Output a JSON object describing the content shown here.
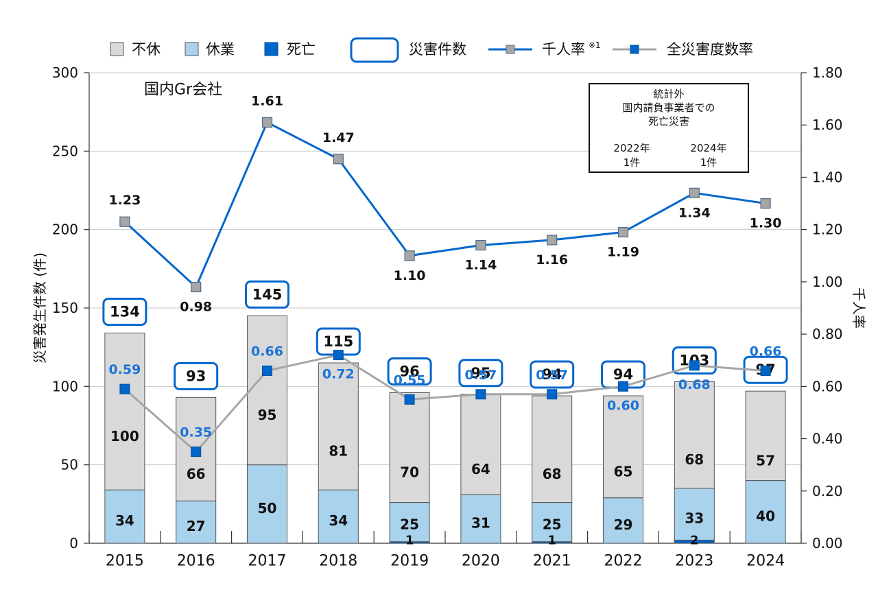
{
  "chart_data": {
    "type": "bar",
    "company_label": "国内Gr会社",
    "categories": [
      "2015",
      "2016",
      "2017",
      "2018",
      "2019",
      "2020",
      "2021",
      "2022",
      "2023",
      "2024"
    ],
    "series": [
      {
        "name": "死亡",
        "kind": "stacked-bar",
        "values": [
          0,
          0,
          0,
          0,
          1,
          0,
          1,
          0,
          2,
          0
        ],
        "labels": [
          "",
          "",
          "",
          "",
          "1",
          "",
          "1",
          "",
          "2",
          ""
        ]
      },
      {
        "name": "休業",
        "kind": "stacked-bar",
        "values": [
          34,
          27,
          50,
          34,
          25,
          31,
          25,
          29,
          33,
          40
        ],
        "labels": [
          "34",
          "27",
          "50",
          "34",
          "25",
          "31",
          "25",
          "29",
          "33",
          "40"
        ]
      },
      {
        "name": "不休",
        "kind": "stacked-bar",
        "values": [
          100,
          66,
          95,
          81,
          70,
          64,
          68,
          65,
          68,
          57
        ],
        "labels": [
          "100",
          "66",
          "95",
          "81",
          "70",
          "64",
          "68",
          "65",
          "68",
          "57"
        ]
      },
      {
        "name": "千人率",
        "kind": "line-right",
        "values": [
          1.23,
          0.98,
          1.61,
          1.47,
          1.1,
          1.14,
          1.16,
          1.19,
          1.34,
          1.3
        ],
        "labels": [
          "1.23",
          "0.98",
          "1.61",
          "1.47",
          "1.10",
          "1.14",
          "1.16",
          "1.19",
          "1.34",
          "1.30"
        ]
      },
      {
        "name": "全災害度数率",
        "kind": "line-right",
        "values": [
          0.59,
          0.35,
          0.66,
          0.72,
          0.55,
          0.57,
          0.57,
          0.6,
          0.68,
          0.66
        ],
        "labels": [
          "0.59",
          "0.35",
          "0.66",
          "0.72",
          "0.55",
          "0.57",
          "0.57",
          "0.60",
          "0.68",
          "0.66"
        ]
      }
    ],
    "totals": {
      "name": "災害件数",
      "values": [
        134,
        93,
        145,
        115,
        96,
        95,
        94,
        94,
        103,
        97
      ],
      "labels": [
        "134",
        "93",
        "145",
        "115",
        "96",
        "95",
        "94",
        "94",
        "103",
        "97"
      ]
    },
    "legend": [
      {
        "name": "不休",
        "swatch": "bar",
        "color": "#d9d9d9"
      },
      {
        "name": "休業",
        "swatch": "bar",
        "color": "#a9d2ec"
      },
      {
        "name": "死亡",
        "swatch": "bar",
        "color": "#0066cc"
      },
      {
        "name": "災害件数",
        "swatch": "box",
        "color": "#0066cc"
      },
      {
        "name": "千人率",
        "superscript": "※1",
        "swatch": "line-gray-marker",
        "color": "#0066cc"
      },
      {
        "name": "全災害度数率",
        "swatch": "line-blue-marker",
        "color": "#a6a6a6"
      }
    ],
    "y_left": {
      "label": "災害発生件数 (件)",
      "min": 0,
      "max": 300,
      "ticks": [
        "0",
        "50",
        "100",
        "150",
        "200",
        "250",
        "300"
      ]
    },
    "y_right": {
      "label": "千人率",
      "min": 0,
      "max": 1.8,
      "ticks": [
        "0.00",
        "0.20",
        "0.40",
        "0.60",
        "0.80",
        "1.00",
        "1.20",
        "1.40",
        "1.60",
        "1.80"
      ]
    },
    "note": {
      "title_lines": [
        "統計外",
        "国内請負事業者での",
        "死亡災害"
      ],
      "items": [
        {
          "year": "2022年",
          "count": "1件"
        },
        {
          "year": "2024年",
          "count": "1件"
        }
      ]
    },
    "colors": {
      "kyugyo_free": "#d9d9d9",
      "kyugyo": "#a9d2ec",
      "death": "#0066cc",
      "box": "#0066cc",
      "line_rate": "#0066cc",
      "line_freq": "#a6a6a6",
      "marker_gray": "#a6a6a6",
      "marker_blue": "#0066cc",
      "freq_label": "#1a73d9"
    }
  }
}
